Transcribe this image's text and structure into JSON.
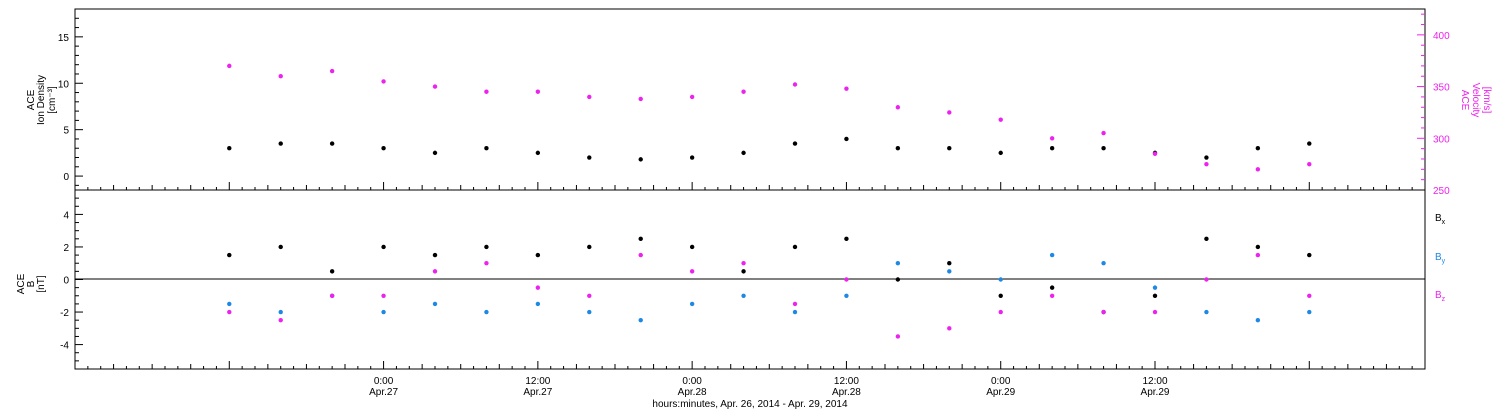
{
  "chart_data": [
    {
      "type": "scatter",
      "panel": "top",
      "title": "",
      "ylabel": "ACE\nIon Density\n[cm⁻³]",
      "y2label": "ACE\nVelocity\n[km/s]",
      "ylim": [
        -1.5,
        18
      ],
      "y2lim": [
        250,
        425
      ],
      "yticks": [
        "0",
        "5",
        "10",
        "15"
      ],
      "y2ticks": [
        "250",
        "300",
        "350",
        "400"
      ],
      "series": [
        {
          "name": "",
          "axis": "left",
          "color": "#000000",
          "x": [
            0,
            4,
            8,
            12,
            16,
            20,
            24,
            28,
            32,
            36,
            40,
            44,
            48,
            52,
            56,
            60,
            64,
            68,
            72,
            76,
            80,
            84
          ],
          "y": [
            3.0,
            3.5,
            3.5,
            3.0,
            2.5,
            3.0,
            2.5,
            2.0,
            1.8,
            2.0,
            2.5,
            3.5,
            4.0,
            3.0,
            3.0,
            2.5,
            3.0,
            3.0,
            2.5,
            2.0,
            3.0,
            3.5
          ]
        },
        {
          "name": "",
          "axis": "right",
          "color": "#ee22ee",
          "x": [
            0,
            4,
            8,
            12,
            16,
            20,
            24,
            28,
            32,
            36,
            40,
            44,
            48,
            52,
            56,
            60,
            64,
            68,
            72,
            76,
            80,
            84
          ],
          "y": [
            370,
            360,
            365,
            355,
            350,
            345,
            345,
            340,
            338,
            340,
            345,
            352,
            348,
            330,
            325,
            318,
            300,
            305,
            285,
            275,
            270,
            275
          ]
        }
      ]
    },
    {
      "type": "scatter",
      "panel": "bottom",
      "title": "",
      "ylabel": "ACE\nB\n[nT]",
      "ylim": [
        -5.5,
        5.5
      ],
      "yticks": [
        "-4",
        "-2",
        "0",
        "2",
        "4"
      ],
      "legend": [
        {
          "label": "Bx",
          "color": "#000000"
        },
        {
          "label": "By",
          "color": "#1e88e5"
        },
        {
          "label": "Bz",
          "color": "#ee22ee"
        }
      ],
      "series": [
        {
          "name": "Bx",
          "color": "#000000",
          "x": [
            0,
            4,
            8,
            12,
            16,
            20,
            24,
            28,
            32,
            36,
            40,
            44,
            48,
            52,
            56,
            60,
            64,
            68,
            72,
            76,
            80,
            84
          ],
          "y": [
            1.5,
            2.0,
            0.5,
            2.0,
            1.5,
            2.0,
            1.5,
            2.0,
            2.5,
            2.0,
            0.5,
            2.0,
            2.5,
            0.0,
            1.0,
            -1.0,
            -0.5,
            -2.0,
            -1.0,
            2.5,
            2.0,
            1.5
          ]
        },
        {
          "name": "By",
          "color": "#1e88e5",
          "x": [
            0,
            4,
            8,
            12,
            16,
            20,
            24,
            28,
            32,
            36,
            40,
            44,
            48,
            52,
            56,
            60,
            64,
            68,
            72,
            76,
            80,
            84
          ],
          "y": [
            -1.5,
            -2.0,
            -1.0,
            -2.0,
            -1.5,
            -2.0,
            -1.5,
            -2.0,
            -2.5,
            -1.5,
            -1.0,
            -2.0,
            -1.0,
            1.0,
            0.5,
            0.0,
            1.5,
            1.0,
            -0.5,
            -2.0,
            -2.5,
            -2.0
          ]
        },
        {
          "name": "Bz",
          "color": "#ee22ee",
          "x": [
            0,
            4,
            8,
            12,
            16,
            20,
            24,
            28,
            32,
            36,
            40,
            44,
            48,
            52,
            56,
            60,
            64,
            68,
            72,
            76,
            80,
            84
          ],
          "y": [
            -2.0,
            -2.5,
            -1.0,
            -1.0,
            0.5,
            1.0,
            -0.5,
            -1.0,
            1.5,
            0.5,
            1.0,
            -1.5,
            0.0,
            -3.5,
            -3.0,
            -2.0,
            -1.0,
            -2.0,
            -2.0,
            0.0,
            1.5,
            -1.0
          ]
        }
      ]
    }
  ],
  "x_axis": {
    "xlim": [
      -12,
      93
    ],
    "major_ticks": [
      {
        "x": 12,
        "time": "0:00",
        "date": "Apr.27"
      },
      {
        "x": 24,
        "time": "12:00",
        "date": "Apr.27"
      },
      {
        "x": 36,
        "time": "0:00",
        "date": "Apr.28"
      },
      {
        "x": 48,
        "time": "12:00",
        "date": "Apr.28"
      },
      {
        "x": 60,
        "time": "0:00",
        "date": "Apr.29"
      },
      {
        "x": 72,
        "time": "12:00",
        "date": "Apr.29"
      }
    ],
    "label": "hours:minutes, Apr. 26, 2014 - Apr. 29, 2014"
  }
}
